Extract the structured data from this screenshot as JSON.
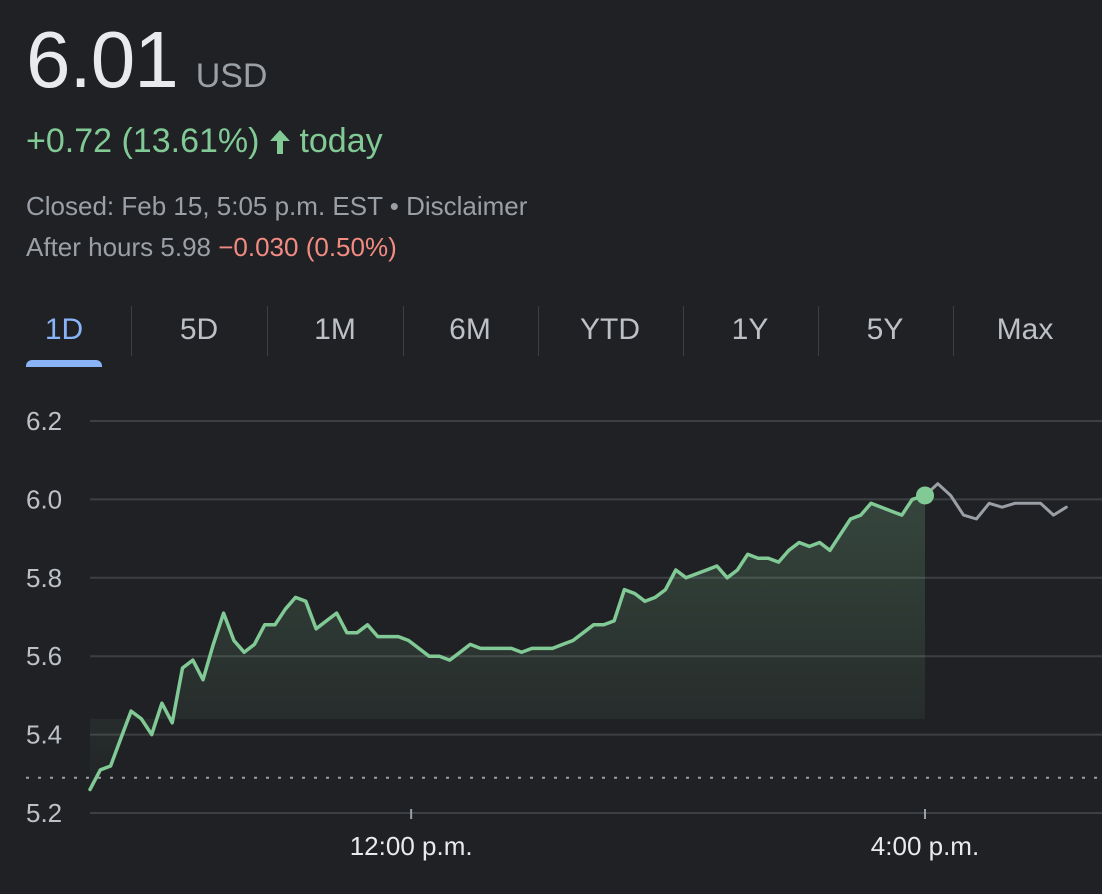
{
  "quote": {
    "price": "6.01",
    "currency": "USD",
    "change": "+0.72 (13.61%)",
    "change_period": "today",
    "closed_text": "Closed: Feb 15, 5:05 p.m. EST",
    "separator": "•",
    "disclaimer": "Disclaimer",
    "after_hours_label": "After hours 5.98",
    "after_hours_change": "−0.030 (0.50%)"
  },
  "tabs": [
    "1D",
    "5D",
    "1M",
    "6M",
    "YTD",
    "1Y",
    "5Y",
    "Max"
  ],
  "active_tab": "1D",
  "colors": {
    "up": "#81c995",
    "down": "#f28b82",
    "accent": "#8ab4f8",
    "after_hours_line": "#9aa0a6"
  },
  "chart_data": {
    "type": "line",
    "ylim": [
      5.2,
      6.2
    ],
    "y_ticks": [
      "6.2",
      "6.0",
      "5.8",
      "5.6",
      "5.4",
      "5.2"
    ],
    "x_ticks": [
      "12:00 p.m.",
      "4:00 p.m."
    ],
    "x_tick_values": [
      12.0,
      16.0
    ],
    "xlim": [
      9.5,
      17.1
    ],
    "previous_close": 5.29,
    "grid": true,
    "series": [
      {
        "session": "regular",
        "x": [
          9.5,
          9.58,
          9.66,
          9.74,
          9.82,
          9.9,
          9.98,
          10.06,
          10.14,
          10.22,
          10.3,
          10.38,
          10.46,
          10.54,
          10.62,
          10.7,
          10.78,
          10.86,
          10.94,
          11.02,
          11.1,
          11.18,
          11.26,
          11.34,
          11.42,
          11.5,
          11.58,
          11.66,
          11.74,
          11.82,
          11.9,
          11.98,
          12.06,
          12.14,
          12.22,
          12.3,
          12.38,
          12.46,
          12.54,
          12.62,
          12.7,
          12.78,
          12.86,
          12.94,
          13.02,
          13.1,
          13.18,
          13.26,
          13.34,
          13.42,
          13.5,
          13.58,
          13.66,
          13.74,
          13.82,
          13.9,
          13.98,
          14.06,
          14.14,
          14.22,
          14.3,
          14.38,
          14.46,
          14.54,
          14.62,
          14.7,
          14.78,
          14.86,
          14.94,
          15.02,
          15.1,
          15.18,
          15.26,
          15.34,
          15.42,
          15.5,
          15.58,
          15.66,
          15.74,
          15.82,
          15.9,
          16.0
        ],
        "y": [
          5.26,
          5.31,
          5.32,
          5.39,
          5.46,
          5.44,
          5.4,
          5.48,
          5.43,
          5.57,
          5.59,
          5.54,
          5.63,
          5.71,
          5.64,
          5.61,
          5.63,
          5.68,
          5.68,
          5.72,
          5.75,
          5.74,
          5.67,
          5.69,
          5.71,
          5.66,
          5.66,
          5.68,
          5.65,
          5.65,
          5.65,
          5.64,
          5.62,
          5.6,
          5.6,
          5.59,
          5.61,
          5.63,
          5.62,
          5.62,
          5.62,
          5.62,
          5.61,
          5.62,
          5.62,
          5.62,
          5.63,
          5.64,
          5.66,
          5.68,
          5.68,
          5.69,
          5.77,
          5.76,
          5.74,
          5.75,
          5.77,
          5.82,
          5.8,
          5.81,
          5.82,
          5.83,
          5.8,
          5.82,
          5.86,
          5.85,
          5.85,
          5.84,
          5.87,
          5.89,
          5.88,
          5.89,
          5.87,
          5.91,
          5.95,
          5.96,
          5.99,
          5.98,
          5.97,
          5.96,
          6.0,
          6.01
        ]
      },
      {
        "session": "after_hours",
        "x": [
          16.0,
          16.1,
          16.2,
          16.3,
          16.4,
          16.5,
          16.6,
          16.7,
          16.8,
          16.9,
          17.0,
          17.1
        ],
        "y": [
          6.01,
          6.04,
          6.01,
          5.96,
          5.95,
          5.99,
          5.98,
          5.99,
          5.99,
          5.99,
          5.96,
          5.98
        ]
      }
    ]
  }
}
